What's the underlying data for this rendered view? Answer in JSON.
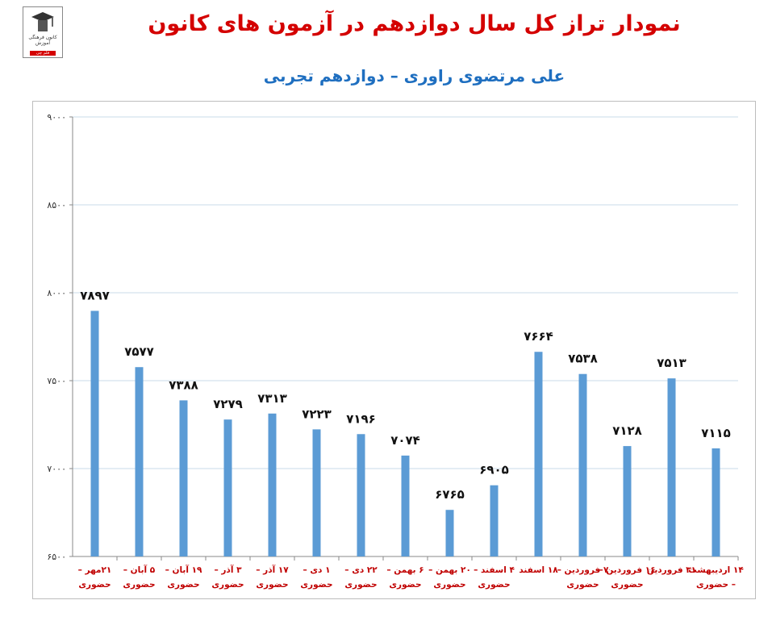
{
  "header": {
    "title": "نمودار تراز کل سال دوازدهم در آزمون های کانون",
    "subtitle": "علی مرتضوی راوری – دوازدهم تجربی"
  },
  "logo": {
    "text": "کانون فرهنگی آموزش",
    "strip": "قلم چی"
  },
  "colors": {
    "bar": "#5b9bd5",
    "title": "#d40000",
    "subtitle": "#1f6fc0",
    "category_label": "#c00000",
    "grid": "#c9dbe9"
  },
  "chart_data": {
    "type": "bar",
    "title": "نمودار تراز کل سال دوازدهم در آزمون های کانون",
    "subtitle": "علی مرتضوی راوری – دوازدهم تجربی",
    "xlabel": "",
    "ylabel": "",
    "ylim": [
      6500,
      9000
    ],
    "yticks": [
      6500,
      7000,
      7500,
      8000,
      8500,
      9000
    ],
    "ytick_labels": [
      "۶۵۰۰",
      "۷۰۰۰",
      "۷۵۰۰",
      "۸۰۰۰",
      "۸۵۰۰",
      "۹۰۰۰"
    ],
    "grid": true,
    "legend": "none",
    "categories": [
      [
        "۲۱مهر –",
        "حضوری"
      ],
      [
        "۵ آبان –",
        "حضوری"
      ],
      [
        "۱۹ آبان –",
        "حضوری"
      ],
      [
        "۳ آذر –",
        "حضوری"
      ],
      [
        "۱۷ آذر –",
        "حضوری"
      ],
      [
        "۱ دی –",
        "حضوری"
      ],
      [
        "۲۲ دی –",
        "حضوری"
      ],
      [
        "۶ بهمن –",
        "حضوری"
      ],
      [
        "۲۰ بهمن –",
        "حضوری"
      ],
      [
        "۴ اسفند –",
        "حضوری"
      ],
      [
        "۱۸ اسفند"
      ],
      [
        "۷ فروردین –",
        "حضوری"
      ],
      [
        "۱۶ فروردین –",
        "حضوری"
      ],
      [
        "۳۱ فروردین"
      ],
      [
        "۱۴ اردیبهشت",
        "– حضوری"
      ]
    ],
    "values": [
      7897,
      7577,
      7388,
      7279,
      7313,
      7223,
      7196,
      7074,
      6765,
      6905,
      7664,
      7538,
      7128,
      7513,
      7115
    ],
    "data_labels": [
      "۷۸۹۷",
      "۷۵۷۷",
      "۷۳۸۸",
      "۷۲۷۹",
      "۷۳۱۳",
      "۷۲۲۳",
      "۷۱۹۶",
      "۷۰۷۴",
      "۶۷۶۵",
      "۶۹۰۵",
      "۷۶۶۴",
      "۷۵۳۸",
      "۷۱۲۸",
      "۷۵۱۳",
      "۷۱۱۵"
    ]
  }
}
